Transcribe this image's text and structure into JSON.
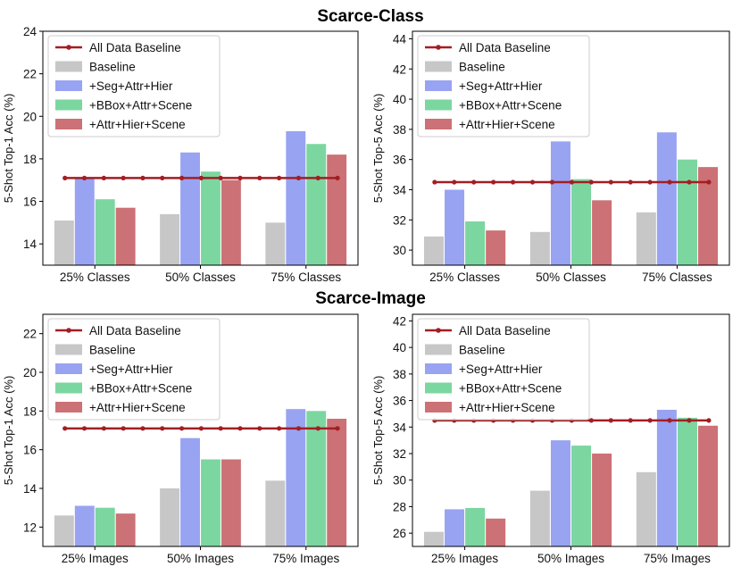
{
  "section_titles": [
    "Scarce-Class",
    "Scarce-Image"
  ],
  "colors": {
    "baseline_line": "#a31e23",
    "Baseline": "#c7c7c7",
    "+Seg+Attr+Hier": "#98a3f2",
    "+BBox+Attr+Scene": "#7cd6a0",
    "+Attr+Hier+Scene": "#cc7175"
  },
  "chart_data": [
    {
      "type": "bar",
      "section": "Scarce-Class",
      "ylabel": "5-Shot Top-1 Acc (%)",
      "categories": [
        "25% Classes",
        "50% Classes",
        "75% Classes"
      ],
      "ylim": [
        13,
        24
      ],
      "yticks": [
        14,
        16,
        18,
        20,
        22,
        24
      ],
      "series": [
        {
          "name": "Baseline",
          "values": [
            15.1,
            15.4,
            15.0
          ]
        },
        {
          "name": "+Seg+Attr+Hier",
          "values": [
            17.1,
            18.3,
            19.3
          ]
        },
        {
          "name": "+BBox+Attr+Scene",
          "values": [
            16.1,
            17.4,
            18.7
          ]
        },
        {
          "name": "+Attr+Hier+Scene",
          "values": [
            15.7,
            17.0,
            18.2
          ]
        }
      ],
      "reference_line": {
        "name": "All Data Baseline",
        "value": 17.1
      },
      "legend": "upper-left"
    },
    {
      "type": "bar",
      "section": "Scarce-Class",
      "ylabel": "5-Shot Top-5 Acc (%)",
      "categories": [
        "25% Classes",
        "50% Classes",
        "75% Classes"
      ],
      "ylim": [
        29,
        44.5
      ],
      "yticks": [
        30,
        32,
        34,
        36,
        38,
        40,
        42,
        44
      ],
      "series": [
        {
          "name": "Baseline",
          "values": [
            30.9,
            31.2,
            32.5
          ]
        },
        {
          "name": "+Seg+Attr+Hier",
          "values": [
            34.0,
            37.2,
            37.8
          ]
        },
        {
          "name": "+BBox+Attr+Scene",
          "values": [
            31.9,
            34.7,
            36.0
          ]
        },
        {
          "name": "+Attr+Hier+Scene",
          "values": [
            31.3,
            33.3,
            35.5
          ]
        }
      ],
      "reference_line": {
        "name": "All Data Baseline",
        "value": 34.5
      },
      "legend": "upper-left"
    },
    {
      "type": "bar",
      "section": "Scarce-Image",
      "ylabel": "5-Shot Top-1 Acc (%)",
      "categories": [
        "25% Images",
        "50% Images",
        "75% Images"
      ],
      "ylim": [
        11,
        23
      ],
      "yticks": [
        12,
        14,
        16,
        18,
        20,
        22
      ],
      "series": [
        {
          "name": "Baseline",
          "values": [
            12.6,
            14.0,
            14.4
          ]
        },
        {
          "name": "+Seg+Attr+Hier",
          "values": [
            13.1,
            16.6,
            18.1
          ]
        },
        {
          "name": "+BBox+Attr+Scene",
          "values": [
            13.0,
            15.5,
            18.0
          ]
        },
        {
          "name": "+Attr+Hier+Scene",
          "values": [
            12.7,
            15.5,
            17.6
          ]
        }
      ],
      "reference_line": {
        "name": "All Data Baseline",
        "value": 17.1
      },
      "legend": "upper-left"
    },
    {
      "type": "bar",
      "section": "Scarce-Image",
      "ylabel": "5-Shot Top-5 Acc (%)",
      "categories": [
        "25% Images",
        "50% Images",
        "75% Images"
      ],
      "ylim": [
        25,
        42.5
      ],
      "yticks": [
        26,
        28,
        30,
        32,
        34,
        36,
        38,
        40,
        42
      ],
      "series": [
        {
          "name": "Baseline",
          "values": [
            26.1,
            29.2,
            30.6
          ]
        },
        {
          "name": "+Seg+Attr+Hier",
          "values": [
            27.8,
            33.0,
            35.3
          ]
        },
        {
          "name": "+BBox+Attr+Scene",
          "values": [
            27.9,
            32.6,
            34.7
          ]
        },
        {
          "name": "+Attr+Hier+Scene",
          "values": [
            27.1,
            32.0,
            34.1
          ]
        }
      ],
      "reference_line": {
        "name": "All Data Baseline",
        "value": 34.5
      },
      "legend": "upper-left"
    }
  ]
}
